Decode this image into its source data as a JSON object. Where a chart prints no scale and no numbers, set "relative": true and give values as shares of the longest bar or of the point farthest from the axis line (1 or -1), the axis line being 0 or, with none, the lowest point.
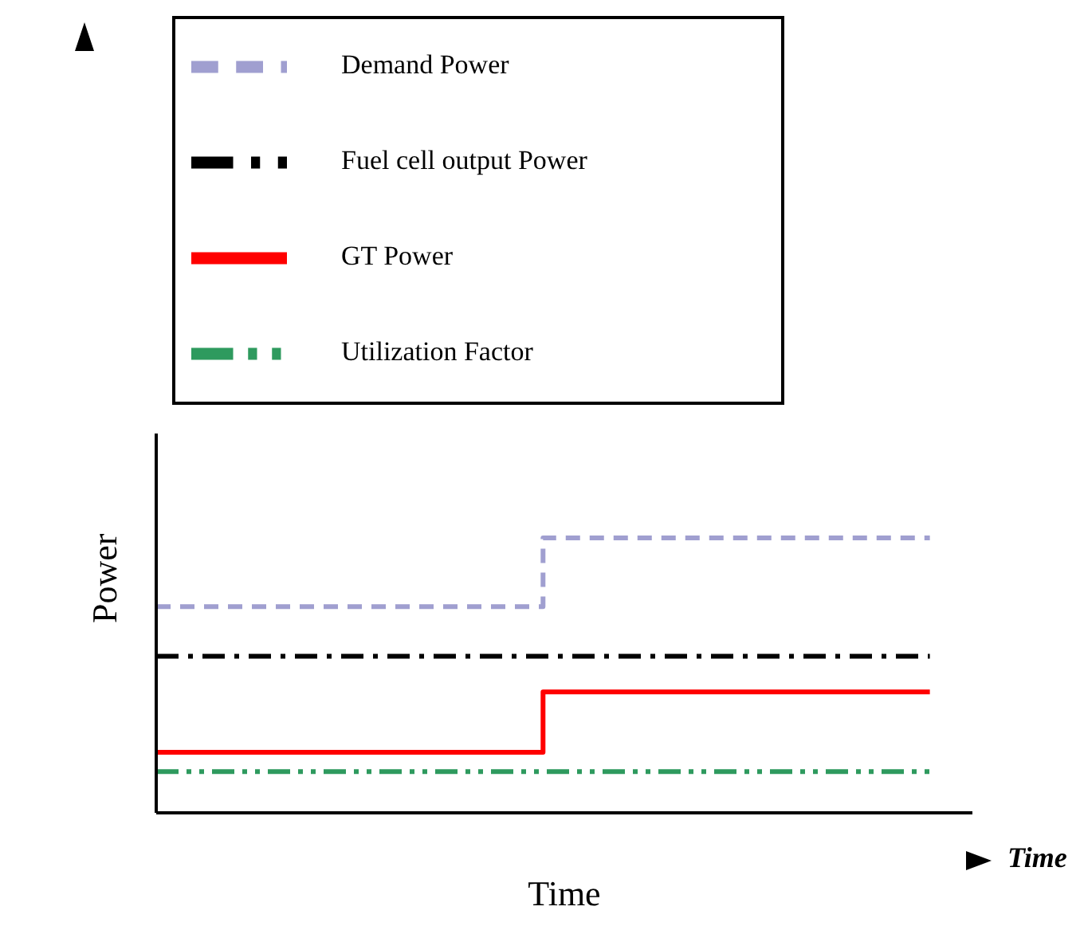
{
  "chart_data": {
    "type": "step",
    "relative": true,
    "xlabel": "Time",
    "ylabel": "Power",
    "categories": [
      null,
      null,
      null
    ],
    "grid": false,
    "tick_labels": false,
    "legend": "top",
    "marker": "none",
    "annotations": [
      "Time"
    ],
    "series": [
      {
        "name": "Demand Power",
        "color": "#a09fd0",
        "values": [
          0.75,
          1,
          1
        ],
        "line_style": "dashed"
      },
      {
        "name": "GT Power",
        "color": "#ff0000",
        "values": [
          0.22,
          0.44,
          0.44
        ],
        "line_style": "solid"
      },
      {
        "name": "Fuel cell output Power",
        "color": "#000000",
        "values": [
          0.57,
          0.57,
          0.57
        ],
        "line_style": "dashdot"
      },
      {
        "name": "Utilization Factor",
        "color": "#2e9a5e",
        "values": [
          0.15,
          0.15,
          0.15
        ],
        "line_style": "dashdotdot"
      }
    ]
  }
}
